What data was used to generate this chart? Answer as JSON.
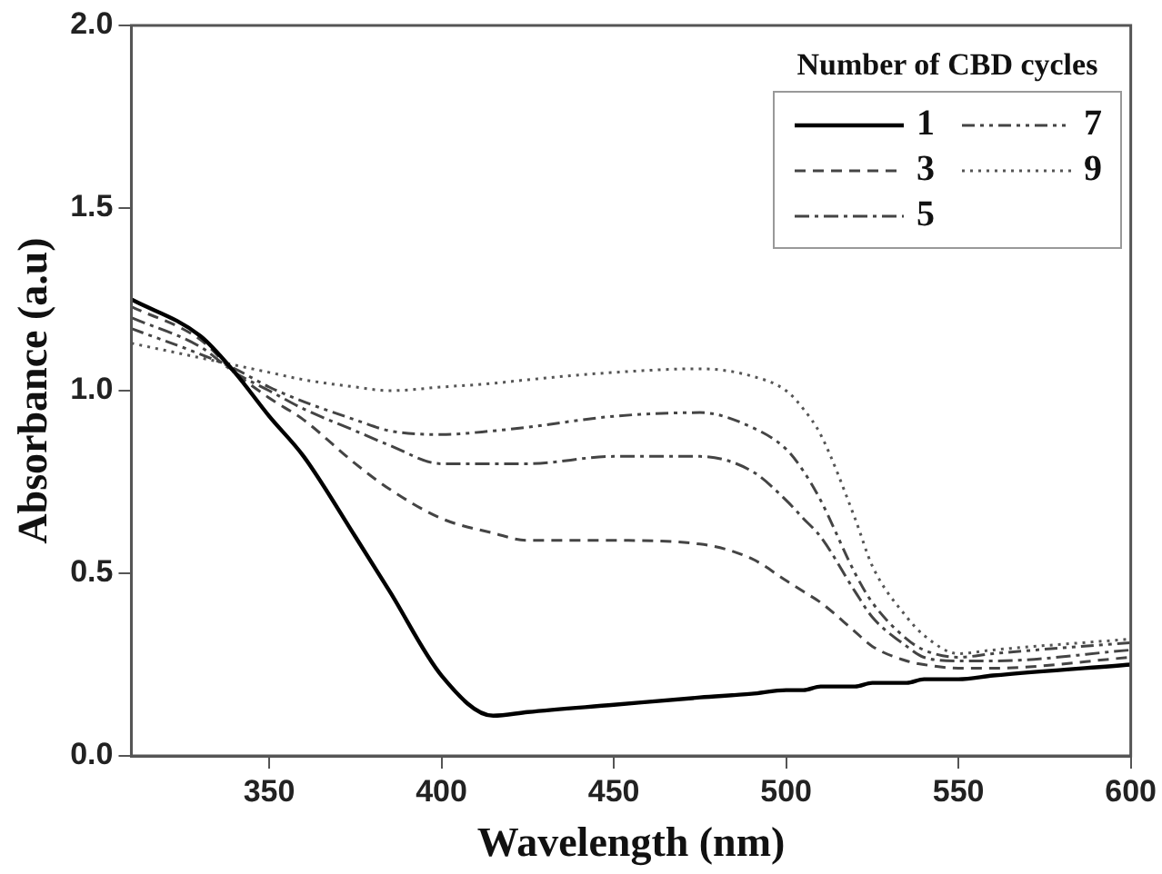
{
  "chart_data": {
    "type": "line",
    "xlabel": "Wavelength (nm)",
    "ylabel": "Absorbance (a.u)",
    "legend_title": "Number of CBD cycles",
    "xlim": [
      310,
      600
    ],
    "xticks": [
      350,
      400,
      450,
      500,
      550,
      600
    ],
    "ylim": [
      0,
      2
    ],
    "yticks": [
      {
        "value": 0,
        "label": "0.0"
      },
      {
        "value": 0.5,
        "label": "0.5"
      },
      {
        "value": 1,
        "label": "1.0"
      },
      {
        "value": 1.5,
        "label": "1.5"
      },
      {
        "value": 2,
        "label": "2.0"
      }
    ],
    "grid": false,
    "legend": "top right",
    "marker": "none",
    "x": [
      310,
      330,
      340,
      350,
      360,
      375,
      385,
      400,
      415,
      425,
      450,
      475,
      490,
      500,
      505,
      510,
      520,
      525,
      535,
      540,
      550,
      560,
      600
    ],
    "series": [
      {
        "name": "1",
        "color": "#000000",
        "line_style": "solid",
        "values": [
          1.25,
          1.15,
          1.05,
          0.93,
          0.82,
          0.6,
          0.45,
          0.22,
          0.11,
          0.12,
          0.14,
          0.16,
          0.17,
          0.18,
          0.18,
          0.19,
          0.19,
          0.2,
          0.2,
          0.21,
          0.21,
          0.22,
          0.25
        ]
      },
      {
        "name": "3",
        "color": "#444444",
        "line_style": "dashed",
        "values": [
          1.23,
          1.14,
          1.05,
          0.98,
          0.92,
          0.8,
          0.73,
          0.65,
          0.61,
          0.59,
          0.59,
          0.58,
          0.54,
          0.48,
          0.45,
          0.42,
          0.34,
          0.3,
          0.26,
          0.25,
          0.24,
          0.24,
          0.27
        ]
      },
      {
        "name": "5",
        "color": "#444444",
        "line_style": "dashdot",
        "values": [
          1.2,
          1.12,
          1.05,
          1.0,
          0.95,
          0.89,
          0.85,
          0.8,
          0.8,
          0.8,
          0.82,
          0.82,
          0.78,
          0.7,
          0.65,
          0.6,
          0.45,
          0.38,
          0.3,
          0.27,
          0.26,
          0.26,
          0.29
        ]
      },
      {
        "name": "7",
        "color": "#444444",
        "line_style": "dashdotdot",
        "values": [
          1.17,
          1.1,
          1.06,
          1.01,
          0.97,
          0.92,
          0.89,
          0.88,
          0.89,
          0.9,
          0.93,
          0.94,
          0.9,
          0.84,
          0.78,
          0.7,
          0.5,
          0.42,
          0.32,
          0.29,
          0.27,
          0.28,
          0.31
        ]
      },
      {
        "name": "9",
        "color": "#555555",
        "line_style": "dotted",
        "values": [
          1.13,
          1.09,
          1.07,
          1.05,
          1.03,
          1.01,
          1.0,
          1.01,
          1.02,
          1.03,
          1.05,
          1.06,
          1.04,
          1.0,
          0.95,
          0.88,
          0.65,
          0.52,
          0.38,
          0.33,
          0.28,
          0.29,
          0.32
        ]
      }
    ]
  }
}
